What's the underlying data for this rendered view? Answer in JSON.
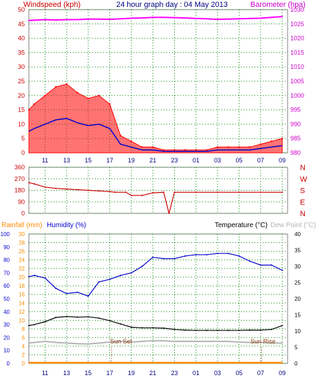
{
  "header": {
    "windspeed_label": "Windspeed (kph)",
    "title": "24 hour graph day : 04 May 2013",
    "barometer_label": "Barometer (hpa)"
  },
  "x_ticks": [
    "11",
    "13",
    "15",
    "17",
    "19",
    "21",
    "23",
    "01",
    "03",
    "05",
    "07",
    "09"
  ],
  "colors": {
    "wind_gust": "#ff0000",
    "wind_avg": "#0000cc",
    "wind_green": "#008000",
    "barometer": "#ff00ff",
    "direction": "#cc0000",
    "humidity": "#0000cc",
    "temperature": "#000000",
    "dew_point": "#b4b4b4",
    "rainfall": "#ff8c00",
    "grid": "#008000"
  },
  "panels": {
    "wind": {
      "left_ticks": [
        "0",
        "5",
        "10",
        "15",
        "20",
        "25",
        "30",
        "35",
        "40",
        "45",
        "50"
      ],
      "right_ticks": [
        "980",
        "985",
        "990",
        "995",
        "1000",
        "1005",
        "1010",
        "1015",
        "1020",
        "1025",
        "1030"
      ]
    },
    "direction": {
      "left_ticks": [
        "360",
        "270",
        "180",
        "90",
        "0"
      ],
      "compass_letters": [
        "N",
        "W",
        "S",
        "E",
        "N"
      ]
    },
    "temp": {
      "labels": {
        "rainfall": "Rainfall (mm)",
        "humidity": "Humidity (%)",
        "temperature": "Temperature (°C)",
        "dew_point": "Dew Point (°C)"
      },
      "rain_ticks": [
        "0",
        "2",
        "4",
        "6",
        "8",
        "10",
        "12",
        "14",
        "16",
        "18",
        "20",
        "22",
        "24",
        "26",
        "28",
        "30"
      ],
      "humidity_ticks": [
        "0",
        "10",
        "20",
        "30",
        "40",
        "50",
        "60",
        "70",
        "80",
        "90",
        "100"
      ],
      "temp_ticks": [
        "0",
        "5",
        "10",
        "15",
        "20",
        "25",
        "30",
        "35",
        "40"
      ],
      "annotations": {
        "sunset": "Sun Set",
        "sunrise": "Sun Rise"
      }
    }
  },
  "chart_data": [
    {
      "type": "line",
      "x": [
        "09:30",
        "10:00",
        "11:00",
        "12:00",
        "13:00",
        "14:00",
        "15:00",
        "16:00",
        "17:00",
        "18:00",
        "19:00",
        "20:00",
        "21:00",
        "22:00",
        "23:00",
        "00:00",
        "01:00",
        "02:00",
        "03:00",
        "04:00",
        "05:00",
        "06:00",
        "07:00",
        "08:00",
        "09:00"
      ],
      "series": [
        {
          "name": "Windspeed (kph)",
          "values": [
            15,
            17,
            20,
            23,
            24,
            21,
            19,
            20,
            17,
            6,
            4,
            2,
            2,
            1,
            1,
            1,
            1,
            1,
            2,
            2,
            2,
            2,
            3,
            4,
            5
          ]
        },
        {
          "name": "Barometer (hpa)",
          "values": [
            1026.2,
            1026.3,
            1026.5,
            1026.4,
            1026.5,
            1026.5,
            1026.7,
            1026.7,
            1026.6,
            1026.8,
            1027.0,
            1027.1,
            1027.3,
            1027.3,
            1027.2,
            1027.1,
            1026.9,
            1026.8,
            1026.6,
            1026.7,
            1026.8,
            1026.9,
            1027.0,
            1027.3,
            1027.6
          ]
        }
      ],
      "xlim": [
        "09:30",
        "09:30"
      ],
      "ylim": [
        0,
        50
      ],
      "y2lim": [
        980,
        1030
      ],
      "grid": true
    },
    {
      "type": "line",
      "x": [
        "09:30",
        "10:00",
        "11:00",
        "12:00",
        "13:00",
        "14:00",
        "15:00",
        "16:00",
        "17:00",
        "17:30",
        "18:30",
        "19:00",
        "20:00",
        "21:00",
        "22:00",
        "22:30",
        "23:00",
        "01:00",
        "03:00",
        "05:00",
        "07:00",
        "09:00"
      ],
      "series": [
        {
          "name": "Wind direction",
          "values": [
            240,
            230,
            205,
            195,
            190,
            185,
            180,
            175,
            170,
            165,
            165,
            140,
            140,
            160,
            165,
            0,
            165,
            165,
            165,
            165,
            165,
            165
          ]
        }
      ],
      "ylim": [
        0,
        360
      ],
      "grid": true
    },
    {
      "type": "line",
      "x": [
        "09:30",
        "10:00",
        "11:00",
        "12:00",
        "13:00",
        "14:00",
        "15:00",
        "16:00",
        "17:00",
        "18:00",
        "19:00",
        "20:00",
        "21:00",
        "22:00",
        "23:00",
        "00:00",
        "01:00",
        "02:00",
        "03:00",
        "04:00",
        "05:00",
        "06:00",
        "07:00",
        "08:00",
        "09:00"
      ],
      "series": [
        {
          "name": "Humidity (%)",
          "values": [
            67,
            68,
            66,
            58,
            54,
            55,
            52,
            63,
            65,
            68,
            70,
            75,
            82,
            81,
            81,
            83,
            84,
            84,
            85,
            85,
            83,
            79,
            76,
            76,
            72
          ]
        },
        {
          "name": "Temperature (°C)",
          "values": [
            11.7,
            12.0,
            12.9,
            14.2,
            14.5,
            14.3,
            14.4,
            14.0,
            13.2,
            12.2,
            11.2,
            11.0,
            11.0,
            10.9,
            10.5,
            10.3,
            10.2,
            10.2,
            10.2,
            10.2,
            10.2,
            10.3,
            10.3,
            10.5,
            11.7
          ]
        },
        {
          "name": "Dew Point (°C)",
          "values": [
            6.3,
            6.5,
            6.8,
            6.5,
            6.3,
            6.1,
            6.0,
            6.3,
            6.6,
            6.8,
            6.6,
            6.8,
            7.0,
            7.0,
            6.8,
            6.8,
            6.8,
            6.8,
            6.8,
            6.8,
            6.6,
            6.5,
            6.5,
            6.3,
            6.3
          ]
        },
        {
          "name": "Rainfall (mm)",
          "values": [
            0,
            0,
            0,
            0,
            0,
            0,
            0,
            0,
            0,
            0,
            0,
            0,
            0,
            0,
            0,
            0,
            0,
            0,
            0,
            0,
            0,
            0,
            0,
            0,
            0
          ]
        }
      ],
      "humidity_lim": [
        0,
        100
      ],
      "rain_lim": [
        0,
        30
      ],
      "temp_lim": [
        0,
        40
      ],
      "sunset": "17:10",
      "sunrise": "07:05",
      "grid": true
    }
  ]
}
